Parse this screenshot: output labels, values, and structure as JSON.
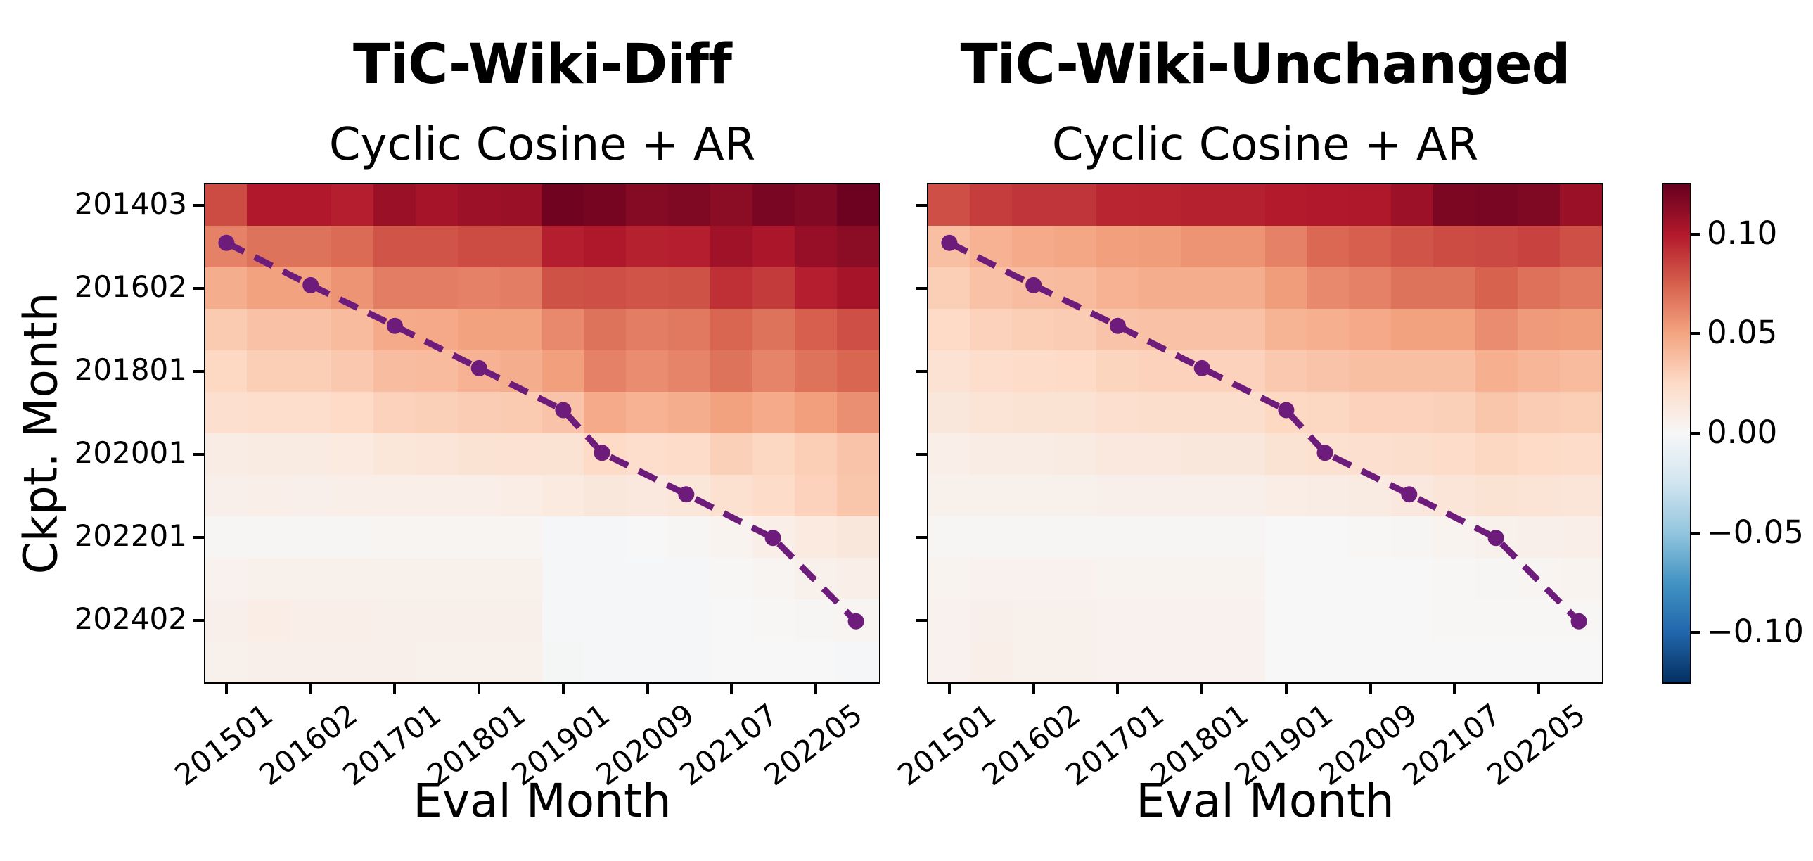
{
  "figure": {
    "background": "#ffffff",
    "xlabel": "Eval Month",
    "ylabel": "Ckpt. Month"
  },
  "chart_data": {
    "type": "heatmap",
    "n_rows": 12,
    "n_cols": 16,
    "xlabel": "Eval Month",
    "ylabel": "Ckpt. Month",
    "x_tick_labels": [
      "201501",
      "201602",
      "201701",
      "201801",
      "201901",
      "202009",
      "202107",
      "202205"
    ],
    "x_tick_cols": [
      0,
      2,
      4,
      6,
      8,
      10,
      12,
      14
    ],
    "y_tick_labels": [
      "201403",
      "201602",
      "201801",
      "202001",
      "202201",
      "202402"
    ],
    "y_tick_rows": [
      0,
      2,
      4,
      6,
      8,
      10
    ],
    "vmin": -0.125,
    "vmax": 0.125,
    "colormap": "RdBu_r",
    "colormap_anchors": [
      "#053061",
      "#2166ac",
      "#4393c3",
      "#92c5de",
      "#d1e5f0",
      "#f7f7f7",
      "#fddbc7",
      "#f4a582",
      "#d6604d",
      "#b2182b",
      "#67001f"
    ],
    "colorbar_ticks": [
      {
        "label": "0.10",
        "value": 0.1
      },
      {
        "label": "0.05",
        "value": 0.05
      },
      {
        "label": "0.00",
        "value": 0.0
      },
      {
        "label": "−0.05",
        "value": -0.05
      },
      {
        "label": "−0.10",
        "value": -0.1
      }
    ],
    "overlay_line": {
      "color": "#6e1c7c",
      "style": "dashed",
      "marker": "circle",
      "points_grid": [
        [
          0.5,
          1.41
        ],
        [
          2.5,
          2.43
        ],
        [
          4.5,
          3.41
        ],
        [
          6.5,
          4.43
        ],
        [
          8.5,
          5.44
        ],
        [
          9.42,
          6.47
        ],
        [
          11.42,
          7.47
        ],
        [
          13.48,
          8.52
        ],
        [
          15.45,
          10.53
        ]
      ]
    },
    "panels": [
      {
        "title": "TiC-Wiki-Diff",
        "subtitle": "Cyclic Cosine + AR",
        "values": [
          [
            0.082,
            0.1,
            0.1,
            0.098,
            0.108,
            0.104,
            0.107,
            0.108,
            0.122,
            0.12,
            0.115,
            0.117,
            0.113,
            0.119,
            0.116,
            0.123
          ],
          [
            0.063,
            0.068,
            0.068,
            0.071,
            0.079,
            0.079,
            0.082,
            0.082,
            0.098,
            0.101,
            0.097,
            0.098,
            0.106,
            0.102,
            0.109,
            0.113
          ],
          [
            0.046,
            0.051,
            0.051,
            0.056,
            0.064,
            0.064,
            0.063,
            0.064,
            0.08,
            0.081,
            0.079,
            0.08,
            0.092,
            0.088,
            0.098,
            0.104
          ],
          [
            0.033,
            0.037,
            0.037,
            0.04,
            0.047,
            0.048,
            0.051,
            0.051,
            0.06,
            0.068,
            0.064,
            0.066,
            0.073,
            0.068,
            0.075,
            0.081
          ],
          [
            0.026,
            0.031,
            0.031,
            0.034,
            0.039,
            0.04,
            0.044,
            0.046,
            0.052,
            0.063,
            0.059,
            0.062,
            0.068,
            0.062,
            0.068,
            0.073
          ],
          [
            0.021,
            0.023,
            0.023,
            0.025,
            0.029,
            0.03,
            0.032,
            0.033,
            0.036,
            0.047,
            0.044,
            0.046,
            0.051,
            0.047,
            0.052,
            0.058
          ],
          [
            0.01,
            0.011,
            0.011,
            0.012,
            0.015,
            0.016,
            0.018,
            0.019,
            0.018,
            0.025,
            0.023,
            0.024,
            0.03,
            0.027,
            0.031,
            0.036
          ],
          [
            0.007,
            0.008,
            0.007,
            0.008,
            0.008,
            0.008,
            0.008,
            0.009,
            0.012,
            0.014,
            0.013,
            0.015,
            0.02,
            0.024,
            0.029,
            0.035
          ],
          [
            0.002,
            0.002,
            0.002,
            0.002,
            0.003,
            0.003,
            0.003,
            0.003,
            -0.001,
            -0.001,
            0.0,
            0.002,
            0.004,
            0.008,
            0.012,
            0.014
          ],
          [
            0.005,
            0.006,
            0.006,
            0.006,
            0.006,
            0.006,
            0.006,
            0.006,
            -0.001,
            -0.001,
            -0.001,
            -0.001,
            0.001,
            0.003,
            0.006,
            0.008
          ],
          [
            0.007,
            0.009,
            0.008,
            0.008,
            0.007,
            0.007,
            0.007,
            0.007,
            -0.001,
            -0.001,
            -0.001,
            -0.001,
            0.0,
            0.001,
            0.002,
            0.003
          ],
          [
            0.006,
            0.007,
            0.007,
            0.007,
            0.007,
            0.006,
            0.006,
            0.006,
            -0.002,
            -0.001,
            -0.001,
            -0.001,
            0.0,
            0.0,
            0.0,
            -0.001
          ]
        ]
      },
      {
        "title": "TiC-Wiki-Unchanged",
        "subtitle": "Cyclic Cosine + AR",
        "values": [
          [
            0.081,
            0.087,
            0.09,
            0.09,
            0.095,
            0.096,
            0.097,
            0.097,
            0.099,
            0.1,
            0.101,
            0.107,
            0.118,
            0.119,
            0.117,
            0.108
          ],
          [
            0.038,
            0.044,
            0.047,
            0.049,
            0.052,
            0.053,
            0.056,
            0.056,
            0.063,
            0.072,
            0.075,
            0.079,
            0.082,
            0.083,
            0.085,
            0.081
          ],
          [
            0.031,
            0.037,
            0.039,
            0.04,
            0.044,
            0.046,
            0.046,
            0.046,
            0.053,
            0.06,
            0.063,
            0.068,
            0.068,
            0.074,
            0.069,
            0.066
          ],
          [
            0.025,
            0.029,
            0.031,
            0.032,
            0.036,
            0.037,
            0.037,
            0.037,
            0.043,
            0.045,
            0.048,
            0.051,
            0.051,
            0.059,
            0.054,
            0.053
          ],
          [
            0.019,
            0.023,
            0.024,
            0.025,
            0.028,
            0.029,
            0.029,
            0.029,
            0.034,
            0.036,
            0.038,
            0.038,
            0.038,
            0.045,
            0.042,
            0.04
          ],
          [
            0.014,
            0.017,
            0.018,
            0.018,
            0.021,
            0.022,
            0.022,
            0.022,
            0.026,
            0.027,
            0.029,
            0.029,
            0.03,
            0.035,
            0.032,
            0.031
          ],
          [
            0.008,
            0.01,
            0.01,
            0.011,
            0.013,
            0.013,
            0.014,
            0.014,
            0.018,
            0.02,
            0.021,
            0.022,
            0.024,
            0.027,
            0.025,
            0.024
          ],
          [
            0.006,
            0.006,
            0.006,
            0.006,
            0.007,
            0.007,
            0.007,
            0.007,
            0.009,
            0.01,
            0.011,
            0.013,
            0.016,
            0.018,
            0.017,
            0.016
          ],
          [
            0.002,
            0.002,
            0.002,
            0.002,
            0.002,
            0.002,
            0.002,
            0.002,
            0.0,
            0.0,
            0.001,
            0.002,
            0.004,
            0.006,
            0.007,
            0.008
          ],
          [
            0.004,
            0.005,
            0.005,
            0.005,
            0.004,
            0.004,
            0.004,
            0.004,
            0.0,
            0.0,
            0.0,
            0.0,
            0.001,
            0.002,
            0.003,
            0.004
          ],
          [
            0.005,
            0.007,
            0.006,
            0.006,
            0.005,
            0.005,
            0.005,
            0.005,
            0.0,
            0.0,
            0.0,
            0.0,
            0.001,
            0.001,
            0.001,
            0.001
          ],
          [
            0.005,
            0.008,
            0.006,
            0.006,
            0.005,
            0.005,
            0.005,
            0.005,
            0.0,
            0.0,
            0.0,
            0.0,
            0.0,
            0.0,
            0.0,
            0.0
          ]
        ]
      }
    ]
  }
}
